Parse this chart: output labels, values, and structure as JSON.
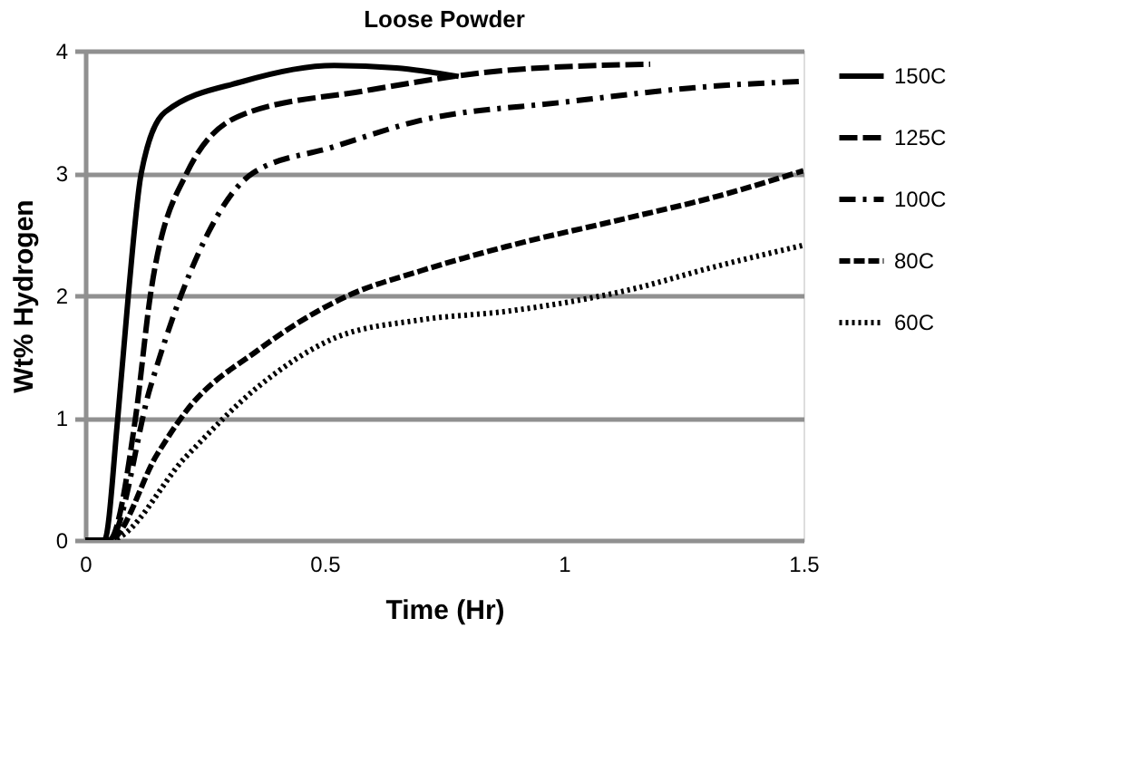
{
  "chart_data": {
    "type": "line",
    "title": "Loose Powder",
    "xlabel": "Time (Hr)",
    "ylabel": "Wt% Hydrogen",
    "xlim": [
      0,
      1.5
    ],
    "xticks": [
      0,
      0.5,
      1,
      1.5
    ],
    "ylim": [
      0,
      4
    ],
    "yticks": [
      0,
      1,
      2,
      3,
      4
    ],
    "grid": "y",
    "legend": "right",
    "marker": "none",
    "series": [
      {
        "name": "150C",
        "color": "#000000",
        "line_style": "solid",
        "x": [
          0,
          0.04,
          0.068,
          0.09,
          0.117,
          0.167,
          0.33,
          0.52,
          0.65,
          0.78
        ],
        "values": [
          0,
          0,
          1,
          2,
          3,
          3.5,
          3.75,
          3.88,
          3.86,
          3.79
        ]
      },
      {
        "name": "125C",
        "color": "#000000",
        "line_style": "longdash",
        "x": [
          0,
          0.05,
          0.105,
          0.136,
          0.212,
          0.33,
          0.58,
          0.88,
          1.18
        ],
        "values": [
          0,
          0,
          1,
          2,
          3,
          3.48,
          3.67,
          3.84,
          3.89
        ]
      },
      {
        "name": "100C",
        "color": "#000000",
        "line_style": "dashdot",
        "x": [
          0,
          0.05,
          0.136,
          0.2,
          0.35,
          0.515,
          0.7,
          1.0,
          1.31,
          1.5
        ],
        "values": [
          0,
          0,
          1.25,
          2,
          3,
          3.21,
          3.43,
          3.58,
          3.71,
          3.75
        ]
      },
      {
        "name": "80C",
        "color": "#000000",
        "line_style": "dashed",
        "x": [
          0,
          0.05,
          0.15,
          0.21,
          0.36,
          0.55,
          0.7,
          0.88,
          1.13,
          1.32,
          1.5
        ],
        "values": [
          0,
          0,
          0.7,
          1.05,
          1.55,
          2.0,
          2.2,
          2.4,
          2.63,
          2.81,
          3.02
        ]
      },
      {
        "name": "60C",
        "color": "#000000",
        "line_style": "dotted",
        "x": [
          0,
          0.05,
          0.21,
          0.36,
          0.52,
          0.7,
          0.88,
          1.13,
          1.32,
          1.5
        ],
        "values": [
          0,
          0,
          0.68,
          1.25,
          1.65,
          1.8,
          1.87,
          2.04,
          2.24,
          2.41
        ]
      }
    ]
  }
}
